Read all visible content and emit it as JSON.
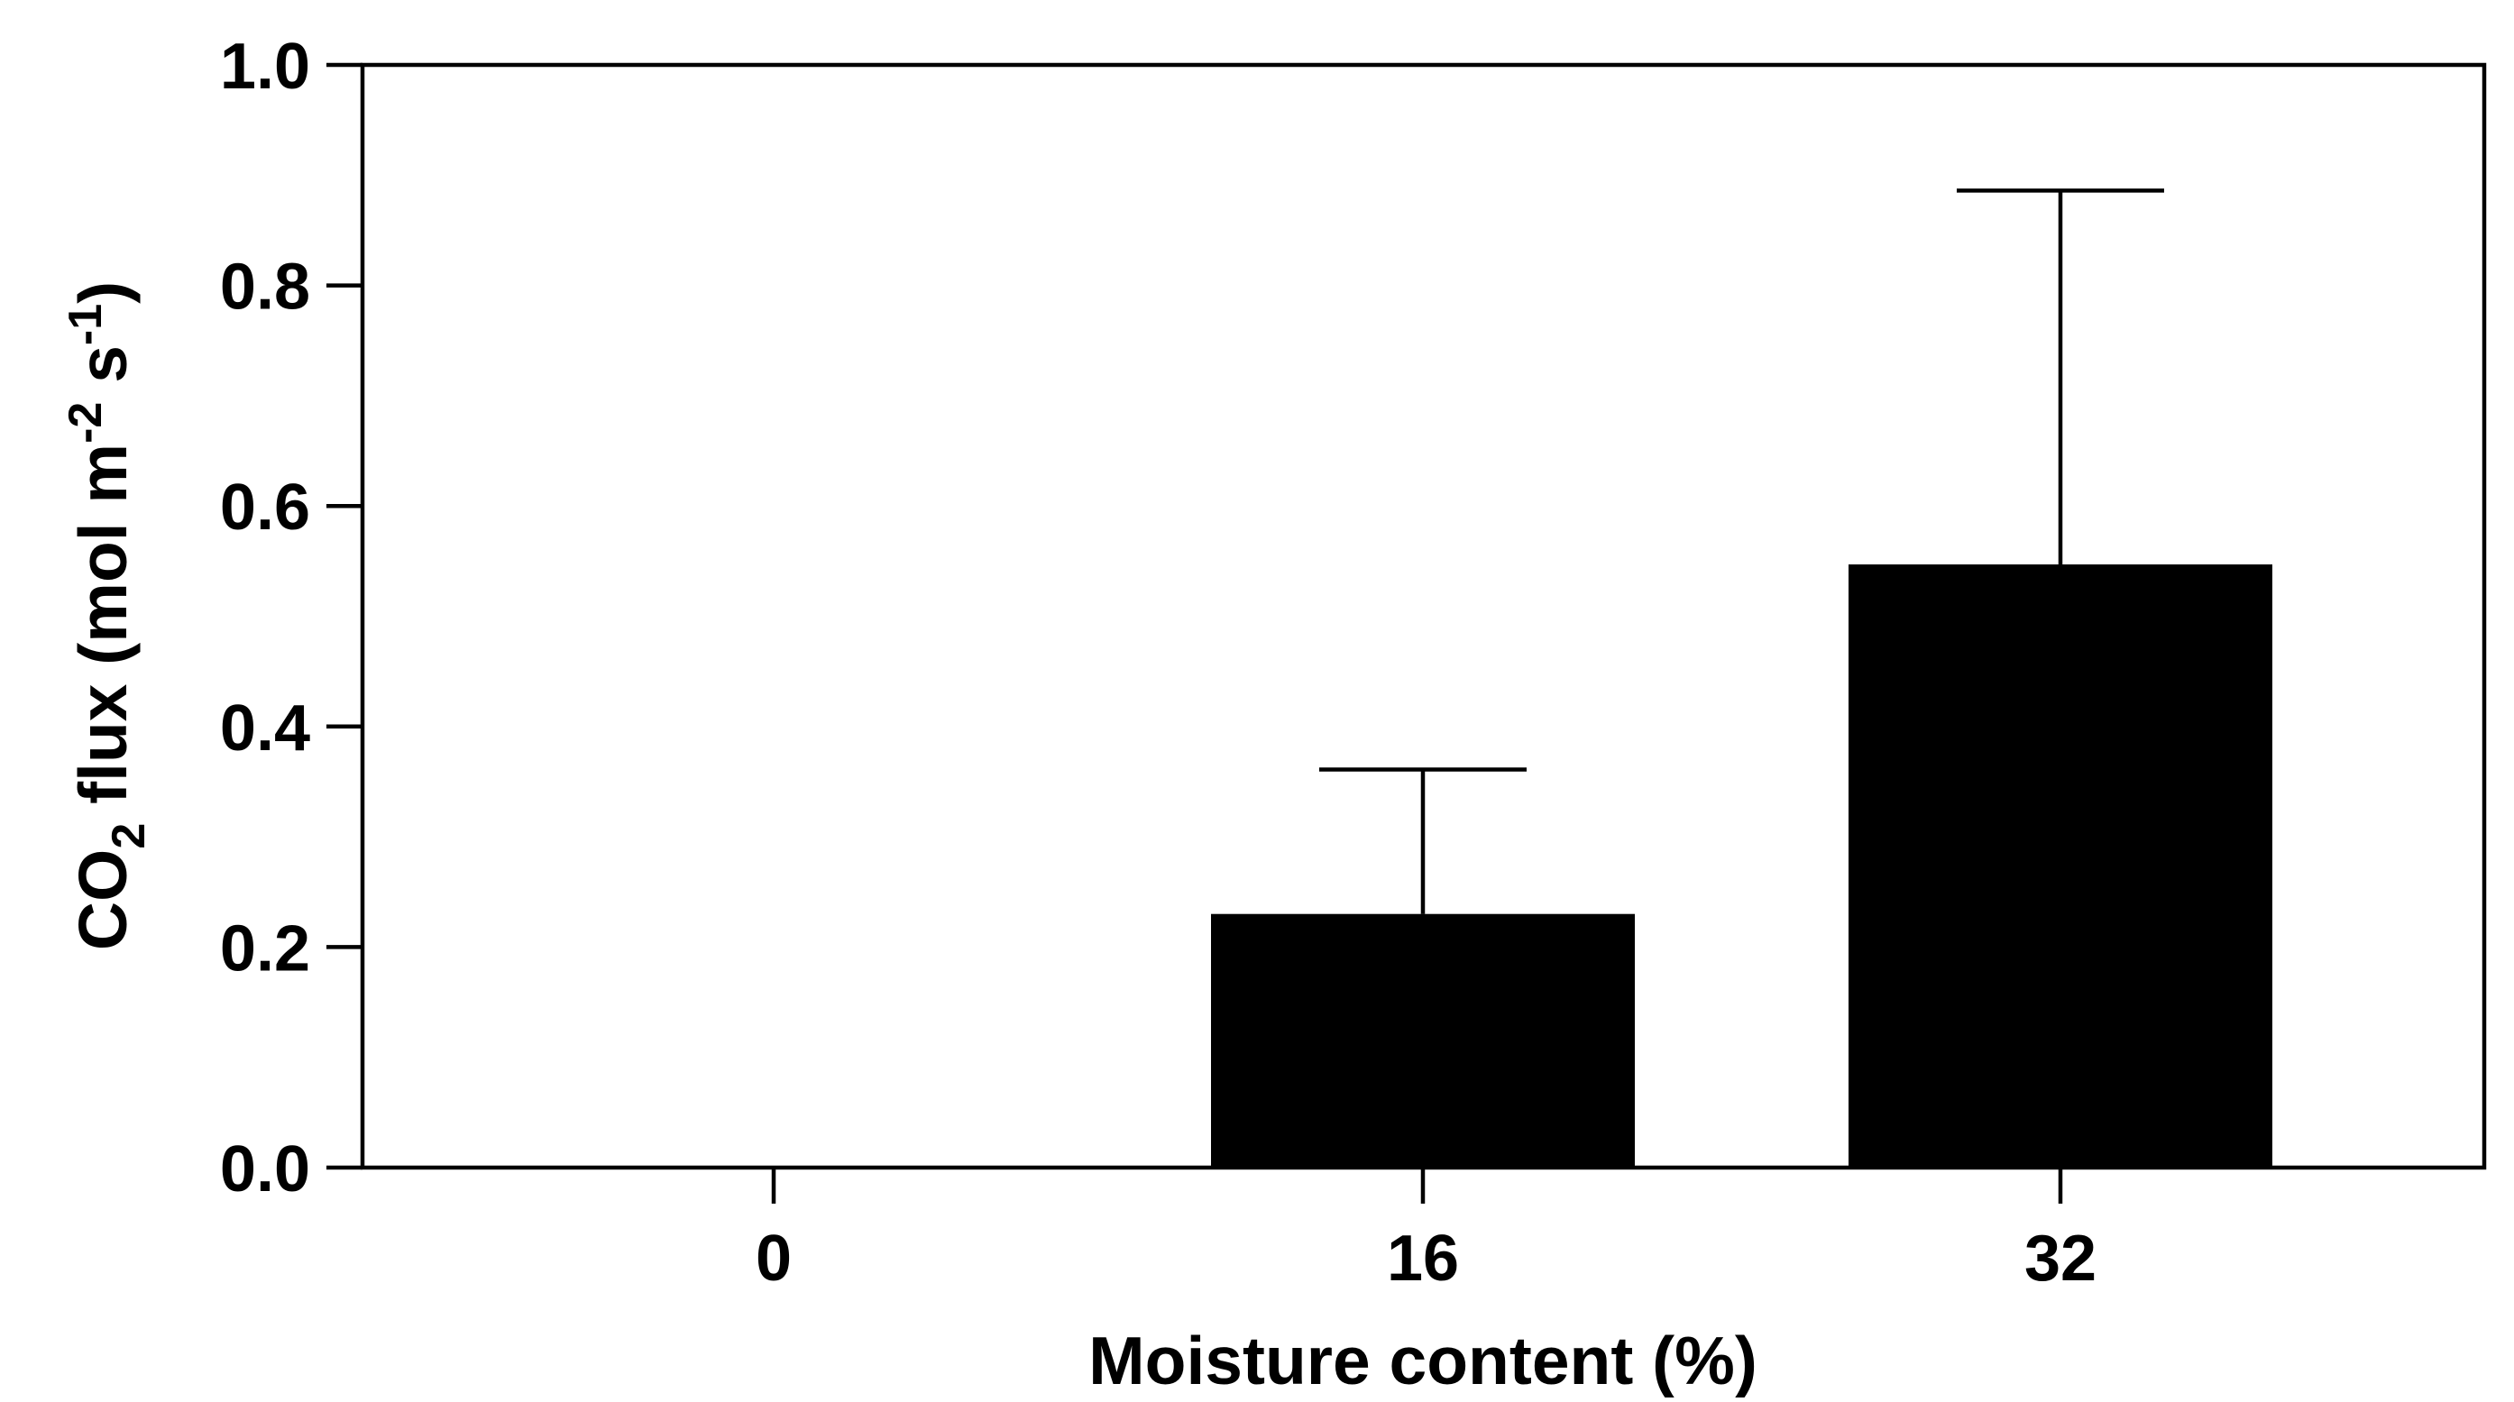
{
  "chart_data": {
    "type": "bar",
    "categories": [
      "0",
      "16",
      "32"
    ],
    "values": [
      0,
      0.23,
      0.547
    ],
    "error_upper": [
      0,
      0.361,
      0.886
    ],
    "xlabel": "Moisture content (%)",
    "ylabel": {
      "prefix": "CO",
      "co2_subscript": "2",
      "middle": " flux (mol m",
      "m_superscript": "-2",
      "s_part": " s",
      "s_superscript": "-1",
      "suffix": ")"
    },
    "ylim": [
      0,
      1.0
    ],
    "yticks": [
      "0.0",
      "0.2",
      "0.4",
      "0.6",
      "0.8",
      "1.0"
    ],
    "ytick_values": [
      0,
      0.2,
      0.4,
      0.6,
      0.8,
      1.0
    ],
    "grid": false,
    "bar_color": "#000000"
  }
}
